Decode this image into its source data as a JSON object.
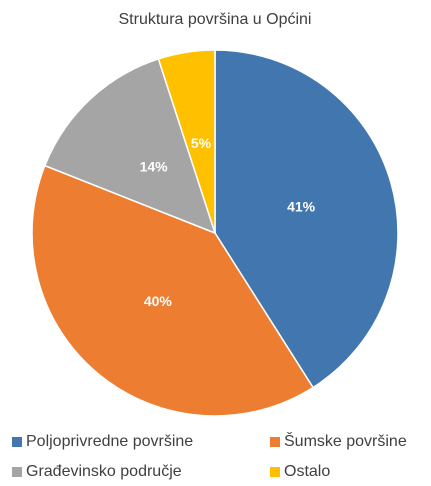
{
  "chart_data": {
    "type": "pie",
    "title": "Struktura površina u Općini",
    "categories": [
      "Poljoprivredne površine",
      "Šumske površine",
      "Građevinsko područje",
      "Ostalo"
    ],
    "values": [
      41,
      40,
      14,
      5
    ],
    "value_labels": [
      "41%",
      "40%",
      "14%",
      "5%"
    ],
    "colors": [
      "#4176ae",
      "#ed7d31",
      "#a5a5a5",
      "#ffc000"
    ],
    "legend": "bottom"
  }
}
